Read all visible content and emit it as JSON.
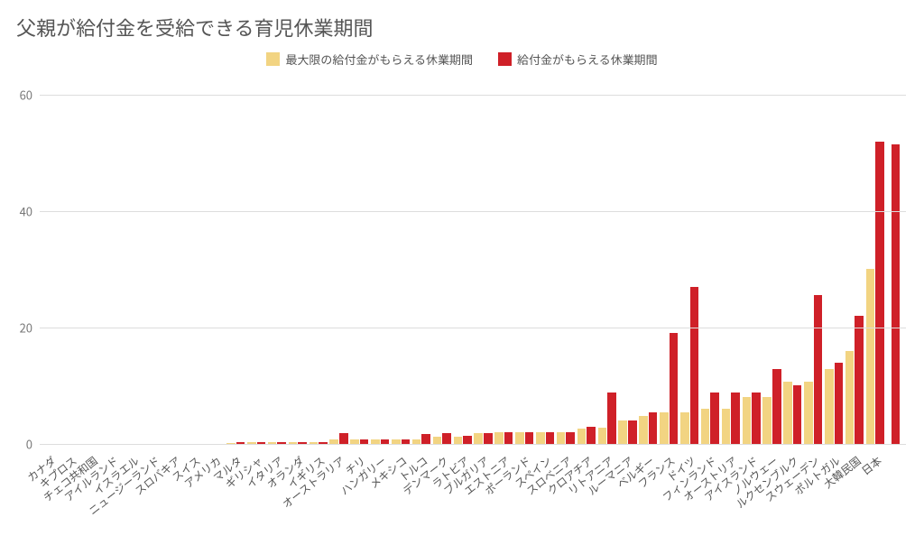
{
  "chart": {
    "type": "bar",
    "title": "父親が給付金を受給できる育児休業期間",
    "title_fontsize": 22,
    "title_color": "#555555",
    "background_color": "#ffffff",
    "grid_color": "#dddddd",
    "axis_tick_color": "#777777",
    "tick_fontsize": 13,
    "xlabel_fontsize": 12,
    "xlabel_rotate_deg": -38,
    "ylim": [
      0,
      62
    ],
    "yticks": [
      0,
      20,
      40,
      60
    ],
    "series": [
      {
        "label": "最大限の給付金がもらえる休業期間",
        "color": "#f2d482"
      },
      {
        "label": "給付金がもらえる休業期間",
        "color": "#cf2028"
      }
    ],
    "legend_fontsize": 13,
    "categories": [
      "カナダ",
      "キプロス",
      "チェコ共和国",
      "アイルランド",
      "イスラエル",
      "ニュージーランド",
      "スロバキア",
      "スイス",
      "アメリカ",
      "マルタ",
      "ギリシャ",
      "イタリア",
      "オランダ",
      "イギリス",
      "オーストラリア",
      "チリ",
      "ハンガリー",
      "メキシコ",
      "トルコ",
      "デンマーク",
      "ラトビア",
      "ブルガリア",
      "エストニア",
      "ポーランド",
      "スペイン",
      "スロベニア",
      "クロアチア",
      "リトアニア",
      "ルーマニア",
      "ベルギー",
      "フランス",
      "ドイツ",
      "フィンランド",
      "オーストリア",
      "アイスランド",
      "ノルウェー",
      "ルクセンブルク",
      "スウェーデン",
      "ポルトガル",
      "大韓民国",
      "日本"
    ],
    "values_series1": [
      0,
      0,
      0,
      0,
      0,
      0,
      0,
      0,
      0,
      0.1,
      0.3,
      0.3,
      0.3,
      0.3,
      0.7,
      0.8,
      0.8,
      0.8,
      0.8,
      1.2,
      1.2,
      1.8,
      2.0,
      2.0,
      2.0,
      2.0,
      2.7,
      2.8,
      4.1,
      4.8,
      5.5,
      5.5,
      6.0,
      6.0,
      8.0,
      8.0,
      10.7,
      10.7,
      12.8,
      16.0,
      30.0
    ],
    "values_series2": [
      0,
      0,
      0,
      0,
      0,
      0,
      0,
      0,
      0,
      0.3,
      0.3,
      0.3,
      0.3,
      0.3,
      1.8,
      0.8,
      0.8,
      0.8,
      1.7,
      1.8,
      1.4,
      1.8,
      2.0,
      2.0,
      2.0,
      2.0,
      3.0,
      8.8,
      4.1,
      5.5,
      19.0,
      27.0,
      8.8,
      8.8,
      8.8,
      12.8,
      10.0,
      25.5,
      14.0,
      22.0,
      52.0
    ],
    "last_bar_extra": {
      "color": "#cf2028",
      "value": 51.5
    },
    "bar_group_width_ratio": 0.84
  }
}
